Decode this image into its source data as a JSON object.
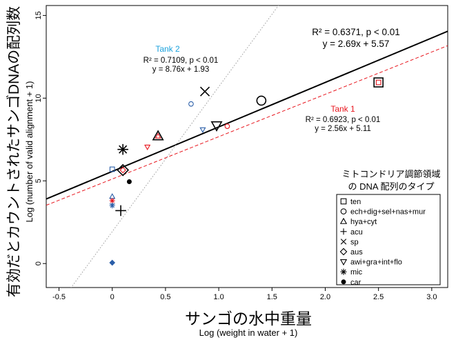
{
  "chart_data": {
    "type": "scatter",
    "xlabel": "Log (weight in water + 1)",
    "xlabel_jp": "サンゴの水中重量",
    "ylabel": "Log (number of valid alignment + 1)",
    "ylabel_jp": "有効だとカウントされたサンゴDNAの配列数",
    "xlim": [
      -0.62,
      3.15
    ],
    "ylim": [
      -1.45,
      15.6
    ],
    "x_ticks": [
      -0.5,
      0,
      0.5,
      1,
      1.5,
      2,
      2.5,
      3
    ],
    "x_tick_labels": [
      "-0.5",
      "0",
      "0.5",
      "1.0",
      "1.5",
      "2.0",
      "2.5",
      "3.0"
    ],
    "y_ticks": [
      0,
      5,
      10,
      15
    ],
    "y_tick_labels": [
      "0",
      "5",
      "10",
      "15"
    ],
    "grid": false,
    "regressions": [
      {
        "label": "",
        "slope": 2.69,
        "intercept": 5.57,
        "color": "#000000",
        "style": "solid",
        "stat_line1": "R² = 0.6371, p < 0.01",
        "stat_line2": "y = 2.69x + 5.57"
      },
      {
        "label": "Tank 1",
        "slope": 2.56,
        "intercept": 5.11,
        "color": "#e8141c",
        "style": "dashed",
        "stat_line1": "R² = 0.6923, p < 0.01",
        "stat_line2": "y = 2.56x + 5.11"
      },
      {
        "label": "Tank 2",
        "slope": 8.76,
        "intercept": 1.93,
        "color": "#999999",
        "style": "dotted",
        "stat_line1": "R² = 0.7109, p < 0.01",
        "stat_line2": "y = 8.76x + 1.93"
      }
    ],
    "tank_label_colors": {
      "Tank 1": "#e8141c",
      "Tank 2": "#1aa1dc"
    },
    "legend": {
      "title_line1": "ミトコンドリア調節領域",
      "title_line2": "の DNA 配列のタイプ",
      "placement": "bottom-right",
      "items": [
        {
          "marker": "square",
          "label": "ten"
        },
        {
          "marker": "circle",
          "label": "ech+dig+sel+nas+mur"
        },
        {
          "marker": "triangle-up",
          "label": "hya+cyt"
        },
        {
          "marker": "plus",
          "label": "acu"
        },
        {
          "marker": "cross",
          "label": "sp"
        },
        {
          "marker": "diamond",
          "label": "aus"
        },
        {
          "marker": "triangle-down",
          "label": "awi+gra+int+flo"
        },
        {
          "marker": "asterisk",
          "label": "mic"
        },
        {
          "marker": "dot",
          "label": "car"
        }
      ]
    },
    "points": [
      {
        "marker": "square",
        "x": 2.5,
        "y": 10.95,
        "color": "#000000",
        "size": "large"
      },
      {
        "marker": "square",
        "x": 2.5,
        "y": 10.95,
        "color": "#e8141c",
        "size": "small"
      },
      {
        "marker": "square",
        "x": 0.0,
        "y": 5.7,
        "color": "#2a5ea8",
        "size": "small"
      },
      {
        "marker": "circle",
        "x": 1.4,
        "y": 9.85,
        "color": "#000000",
        "size": "large"
      },
      {
        "marker": "circle",
        "x": 1.08,
        "y": 8.3,
        "color": "#e8141c",
        "size": "small"
      },
      {
        "marker": "circle",
        "x": 0.74,
        "y": 9.65,
        "color": "#2a5ea8",
        "size": "small"
      },
      {
        "marker": "triangle-up",
        "x": 0.43,
        "y": 7.7,
        "color": "#000000",
        "size": "large"
      },
      {
        "marker": "triangle-up",
        "x": 0.43,
        "y": 7.7,
        "color": "#e8141c",
        "size": "small"
      },
      {
        "marker": "triangle-up",
        "x": 0.0,
        "y": 4.05,
        "color": "#2a5ea8",
        "size": "small"
      },
      {
        "marker": "plus",
        "x": 0.08,
        "y": 3.2,
        "color": "#000000",
        "size": "large"
      },
      {
        "marker": "plus",
        "x": 0.0,
        "y": 3.6,
        "color": "#2a5ea8",
        "size": "small"
      },
      {
        "marker": "cross",
        "x": 0.87,
        "y": 10.4,
        "color": "#000000",
        "size": "large"
      },
      {
        "marker": "diamond",
        "x": 0.1,
        "y": 5.65,
        "color": "#000000",
        "size": "large"
      },
      {
        "marker": "diamond",
        "x": 0.1,
        "y": 5.65,
        "color": "#e8141c",
        "size": "small"
      },
      {
        "marker": "diamond-filled",
        "x": 0.0,
        "y": 0.05,
        "color": "#2a5ea8",
        "size": "small"
      },
      {
        "marker": "triangle-down",
        "x": 0.98,
        "y": 8.35,
        "color": "#000000",
        "size": "large"
      },
      {
        "marker": "triangle-down",
        "x": 0.33,
        "y": 7.05,
        "color": "#e8141c",
        "size": "small"
      },
      {
        "marker": "triangle-down",
        "x": 0.85,
        "y": 8.1,
        "color": "#2a5ea8",
        "size": "small"
      },
      {
        "marker": "asterisk",
        "x": 0.1,
        "y": 6.9,
        "color": "#000000",
        "size": "large"
      },
      {
        "marker": "asterisk",
        "x": 0.0,
        "y": 3.8,
        "color": "#e8141c",
        "size": "small"
      },
      {
        "marker": "asterisk",
        "x": 0.0,
        "y": 3.5,
        "color": "#2a5ea8",
        "size": "small"
      },
      {
        "marker": "dot",
        "x": 0.16,
        "y": 4.95,
        "color": "#000000",
        "size": "small"
      }
    ]
  }
}
